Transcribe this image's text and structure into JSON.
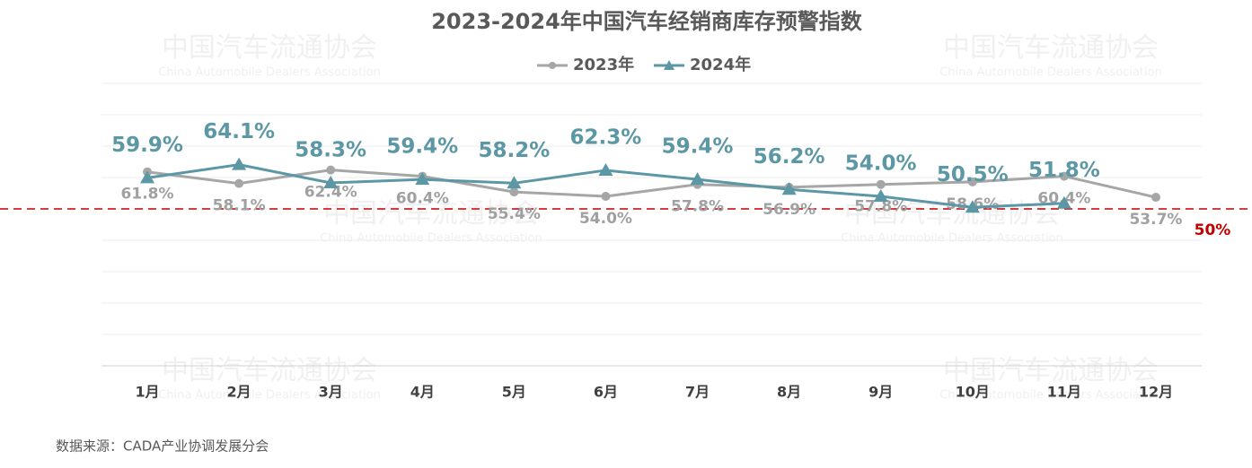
{
  "chart_data": {
    "type": "line",
    "title": "2023-2024年中国汽车经销商库存预警指数",
    "watermark": "中国汽车流通协会",
    "watermark_subtitle": "China Automobile Dealers Association",
    "source": "数据来源：CADA产业协调发展分会",
    "categories": [
      "1月",
      "2月",
      "3月",
      "4月",
      "5月",
      "6月",
      "7月",
      "8月",
      "9月",
      "10月",
      "11月",
      "12月"
    ],
    "series": [
      {
        "name": "2023年",
        "color": "#a6a6a6",
        "values": [
          61.8,
          58.1,
          62.4,
          60.4,
          55.4,
          54.0,
          57.8,
          56.9,
          57.8,
          58.6,
          60.4,
          53.7
        ],
        "value_labels": [
          "61.8%",
          "58.1%",
          "62.4%",
          "60.4%",
          "55.4%",
          "54.0%",
          "57.8%",
          "56.9%",
          "57.8%",
          "58.6%",
          "60.4%",
          "53.7%"
        ]
      },
      {
        "name": "2024年",
        "color": "#5b97a5",
        "values": [
          59.9,
          64.1,
          58.3,
          59.4,
          58.2,
          62.3,
          59.4,
          56.2,
          54.0,
          50.5,
          51.8,
          null
        ],
        "value_labels": [
          "59.9%",
          "64.1%",
          "58.3%",
          "59.4%",
          "58.2%",
          "62.3%",
          "59.4%",
          "56.2%",
          "54.0%",
          "50.5%",
          "51.8%",
          null
        ]
      }
    ],
    "ylim": [
      0,
      90
    ],
    "yticks": [
      0,
      10,
      20,
      30,
      40,
      50,
      60,
      70,
      80,
      90
    ],
    "grid": true,
    "legend": "top",
    "reference_line": {
      "value": 50,
      "label": "50%",
      "color": "#c00000"
    }
  }
}
